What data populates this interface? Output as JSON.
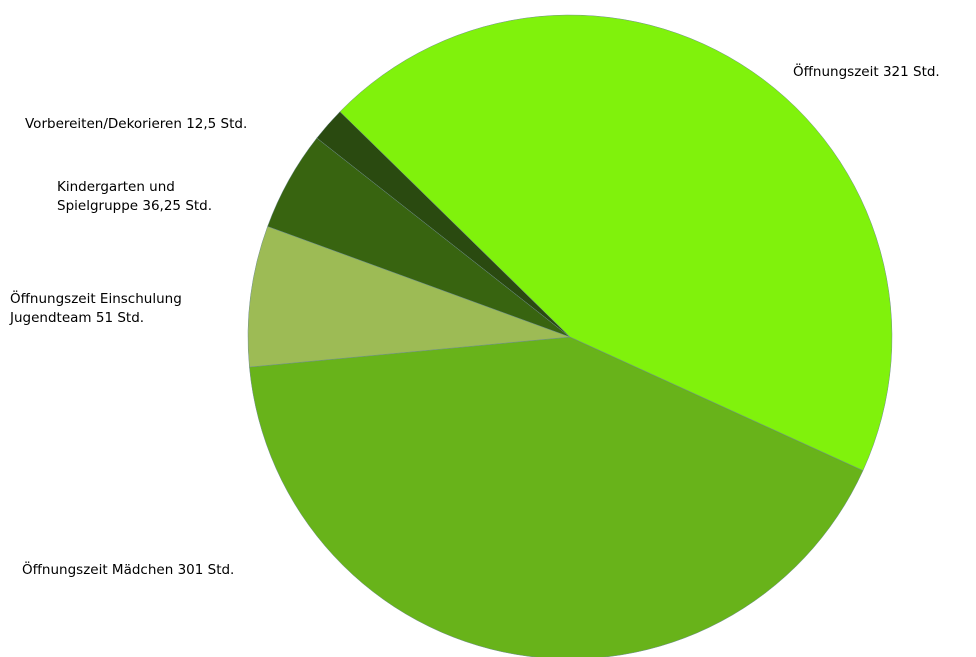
{
  "chart_data": {
    "type": "pie",
    "categories": [
      "Öffnungszeit",
      "Öffnungszeit Mädchen",
      "Öffnungszeit Einschulung Jugendteam",
      "Kindergarten und Spielgruppe",
      "Vorbereiten/Dekorieren"
    ],
    "values": [
      321,
      301,
      51,
      36.25,
      12.5
    ],
    "value_labels": [
      "321 Std.",
      "301 Std.",
      "51 Std.",
      "36,25 Std.",
      "12,5 Std."
    ],
    "colors": [
      "#80f20c",
      "#68b31a",
      "#9dbb55",
      "#386410",
      "#2a4a10"
    ]
  }
}
